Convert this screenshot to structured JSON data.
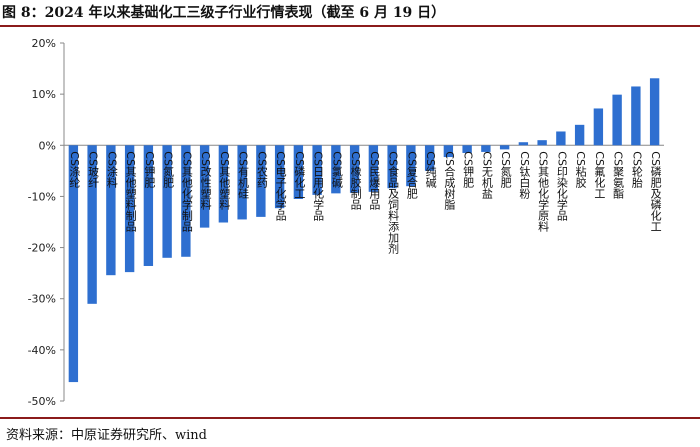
{
  "title": "图 8：2024 年以来基础化工三级子行业行情表现（截至 6 月 19 日）",
  "source": "资料来源：中原证券研究所、wind",
  "chart_data": {
    "type": "bar",
    "bar_color": "#2e6fd0",
    "categories": [
      "CS涤纶",
      "CS玻纤",
      "CS涂料",
      "CS其他塑料制品",
      "CS钾肥",
      "CS氮肥",
      "CS其他化学制品",
      "CS改性塑料",
      "CS其他塑料",
      "CS有机硅",
      "CS农药",
      "CS电子化学品",
      "CS磷化工",
      "CS日用化学品",
      "CS氯碱",
      "CS橡胶制品",
      "CS民爆用品",
      "CS食品及饲料添加剂",
      "CS复合肥",
      "CS纯碱",
      "CS合成树脂",
      "CS钾肥",
      "CS无机盐",
      "CS氮肥",
      "CS钛白粉",
      "CS其他化学原料",
      "CS印染化学品",
      "CS粘胶",
      "CS氟化工",
      "CS聚氨酯",
      "CS轮胎",
      "CS磷肥及磷化工"
    ],
    "values": [
      -46.3,
      -31.0,
      -25.4,
      -24.8,
      -23.6,
      -22.0,
      -21.8,
      -16.1,
      -15.1,
      -14.5,
      -14.0,
      -12.3,
      -10.5,
      -9.7,
      -9.4,
      -9.3,
      -9.1,
      -8.4,
      -8.0,
      -5.0,
      -2.3,
      -1.5,
      -1.3,
      -0.8,
      0.6,
      1.0,
      2.7,
      4.0,
      7.2,
      9.9,
      11.5,
      13.1
    ],
    "ylim": [
      -50,
      20
    ],
    "yticks": [
      -50,
      -40,
      -30,
      -20,
      -10,
      0,
      10,
      20
    ],
    "ytick_labels": [
      "-50%",
      "-40%",
      "-30%",
      "-20%",
      "-10%",
      "0%",
      "10%",
      "20%"
    ],
    "grid": false
  }
}
